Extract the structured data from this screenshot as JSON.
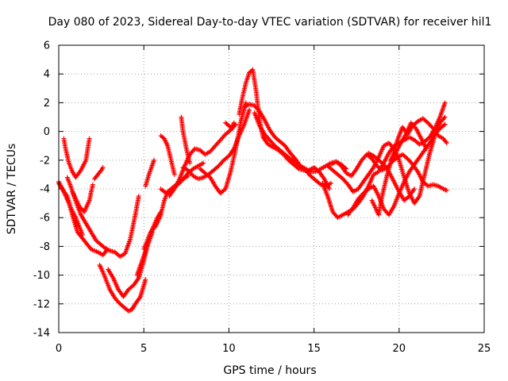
{
  "chart_data": {
    "type": "scatter",
    "title": "Day 080 of 2023, Sidereal Day-to-day VTEC variation (SDTVAR) for receiver hil1",
    "xlabel": "GPS time / hours",
    "ylabel": "SDTVAR / TECUs",
    "xlim": [
      0,
      25
    ],
    "ylim": [
      -14,
      6
    ],
    "xticks": [
      0,
      5,
      10,
      15,
      20,
      25
    ],
    "yticks": [
      -14,
      -12,
      -10,
      -8,
      -6,
      -4,
      -2,
      0,
      2,
      4,
      6
    ],
    "grid": true,
    "marker": "+",
    "color": "#ff0000",
    "series": [
      {
        "name": "s1",
        "x": [
          0.0,
          0.3,
          0.6,
          0.8,
          1.1,
          1.5,
          1.9,
          2.3,
          2.6,
          2.8
        ],
        "y": [
          -3.5,
          -4.2,
          -5.0,
          -5.8,
          -7.0,
          -7.6,
          -8.2,
          -8.4,
          -8.6,
          -8.3
        ]
      },
      {
        "name": "s2",
        "x": [
          0.0,
          0.2,
          0.5,
          0.7,
          1.0,
          1.2,
          1.4
        ],
        "y": [
          -3.6,
          -4.0,
          -4.5,
          -5.3,
          -6.0,
          -6.6,
          -7.2
        ]
      },
      {
        "name": "s3",
        "x": [
          0.3,
          0.4,
          0.6,
          0.8,
          1.0,
          1.3,
          1.6,
          1.8
        ],
        "y": [
          -0.5,
          -1.2,
          -2.2,
          -2.8,
          -3.2,
          -2.7,
          -2.0,
          -0.5
        ]
      },
      {
        "name": "s4",
        "x": [
          0.5,
          0.7,
          0.9,
          1.1,
          1.3,
          1.6,
          1.8,
          2.0,
          2.2,
          2.4,
          2.7,
          3.0,
          3.3,
          3.6,
          3.9,
          4.2,
          4.5,
          4.7
        ],
        "y": [
          -3.2,
          -3.8,
          -4.5,
          -5.2,
          -5.8,
          -6.4,
          -6.8,
          -7.2,
          -7.6,
          -7.8,
          -8.1,
          -8.3,
          -8.4,
          -8.7,
          -8.5,
          -7.5,
          -5.8,
          -4.5
        ]
      },
      {
        "name": "s5",
        "x": [
          0.8,
          1.0,
          1.2,
          1.5,
          1.8,
          2.0
        ],
        "y": [
          -4.2,
          -4.7,
          -5.2,
          -5.6,
          -4.8,
          -3.7
        ]
      },
      {
        "name": "s6",
        "x": [
          2.1,
          2.3,
          2.5,
          2.6
        ],
        "y": [
          -3.3,
          -3.0,
          -2.7,
          -2.5
        ]
      },
      {
        "name": "s7",
        "x": [
          2.4,
          2.6,
          2.8,
          3.0,
          3.3,
          3.6,
          3.9,
          4.1,
          4.3,
          4.5,
          4.8,
          5.1
        ],
        "y": [
          -9.3,
          -9.8,
          -10.4,
          -11.0,
          -11.6,
          -12.0,
          -12.3,
          -12.5,
          -12.4,
          -12.0,
          -11.5,
          -10.3
        ]
      },
      {
        "name": "s8",
        "x": [
          2.9,
          3.2,
          3.5,
          3.8,
          4.1,
          4.4,
          4.7,
          5.0,
          5.2,
          5.5
        ],
        "y": [
          -9.6,
          -10.2,
          -11.0,
          -11.5,
          -11.0,
          -10.7,
          -10.2,
          -9.0,
          -8.0,
          -7.0
        ]
      },
      {
        "name": "s9",
        "x": [
          4.6,
          4.9,
          5.2,
          5.5,
          5.8,
          6.0
        ],
        "y": [
          -10.0,
          -9.0,
          -8.0,
          -6.8,
          -6.0,
          -5.6
        ]
      },
      {
        "name": "s10",
        "x": [
          5.0,
          5.2,
          5.4,
          5.7,
          6.0,
          6.2,
          6.4,
          6.7,
          7.0,
          7.3,
          7.6
        ],
        "y": [
          -8.2,
          -7.6,
          -7.0,
          -6.6,
          -5.8,
          -4.8,
          -4.2,
          -3.9,
          -3.6,
          -3.3,
          -3.1
        ]
      },
      {
        "name": "s11",
        "x": [
          5.1,
          5.3,
          5.6
        ],
        "y": [
          -3.8,
          -3.0,
          -2.0
        ]
      },
      {
        "name": "s12",
        "x": [
          6.0,
          6.2,
          6.4,
          6.6,
          6.8,
          7.1,
          7.4,
          7.6,
          7.9,
          8.2,
          8.5
        ],
        "y": [
          -4.0,
          -4.2,
          -4.3,
          -4.1,
          -3.9,
          -3.6,
          -3.2,
          -2.9,
          -2.6,
          -2.4,
          -2.2
        ]
      },
      {
        "name": "s13",
        "x": [
          6.0,
          6.2,
          6.4,
          6.6,
          6.8
        ],
        "y": [
          -0.3,
          -0.5,
          -1.0,
          -2.0,
          -3.0
        ]
      },
      {
        "name": "s14",
        "x": [
          6.5,
          6.8,
          7.1,
          7.4,
          7.7,
          8.0,
          8.3,
          8.6,
          8.9,
          9.2,
          9.5,
          9.8,
          10.1,
          10.3
        ],
        "y": [
          -4.5,
          -4.0,
          -3.3,
          -2.4,
          -1.6,
          -1.2,
          -1.3,
          -1.6,
          -1.4,
          -1.0,
          -0.6,
          -0.2,
          0.1,
          0.6
        ]
      },
      {
        "name": "s15",
        "x": [
          7.2,
          7.3,
          7.5,
          7.7
        ],
        "y": [
          1.0,
          0.0,
          -1.2,
          -2.2
        ]
      },
      {
        "name": "s16",
        "x": [
          7.3,
          7.6,
          7.9,
          8.2,
          8.5,
          8.8,
          9.1,
          9.4,
          9.7,
          10.0,
          10.3,
          10.6,
          10.9,
          11.2
        ],
        "y": [
          -2.5,
          -2.7,
          -3.1,
          -3.3,
          -3.2,
          -3.0,
          -2.7,
          -2.4,
          -2.0,
          -1.7,
          -1.2,
          -0.3,
          0.5,
          1.5
        ]
      },
      {
        "name": "s17",
        "x": [
          8.3,
          8.6,
          8.9,
          9.2,
          9.5,
          9.8,
          10.1,
          10.4,
          10.7,
          11.0
        ],
        "y": [
          -2.6,
          -2.9,
          -3.2,
          -3.8,
          -4.3,
          -4.0,
          -2.8,
          -1.2,
          0.7,
          2.0
        ]
      },
      {
        "name": "s18",
        "x": [
          9.8,
          10.0,
          10.2,
          10.4
        ],
        "y": [
          0.6,
          0.4,
          0.2,
          0.5
        ]
      },
      {
        "name": "s19",
        "x": [
          10.6,
          10.8,
          11.0,
          11.2,
          11.4,
          11.6,
          11.8,
          12.0,
          12.3,
          12.6,
          12.9,
          13.2,
          13.5,
          13.8,
          14.1,
          14.4,
          14.7,
          15.0,
          15.3,
          15.6,
          15.9
        ],
        "y": [
          1.2,
          2.4,
          3.4,
          4.1,
          4.3,
          2.8,
          0.8,
          -0.4,
          -0.9,
          -1.1,
          -1.3,
          -1.6,
          -2.0,
          -2.3,
          -2.6,
          -2.7,
          -2.7,
          -2.5,
          -2.8,
          -3.3,
          -4.0
        ]
      },
      {
        "name": "s20",
        "x": [
          10.9,
          11.2,
          11.5,
          11.8,
          12.1,
          12.4,
          12.7,
          13.0,
          13.3,
          13.6,
          13.9,
          14.2,
          14.5,
          14.8,
          15.1,
          15.4,
          15.7,
          16.0
        ],
        "y": [
          1.7,
          1.9,
          1.8,
          1.4,
          0.8,
          0.1,
          -0.4,
          -0.7,
          -1.0,
          -1.5,
          -1.9,
          -2.4,
          -2.7,
          -3.1,
          -3.4,
          -3.7,
          -3.8,
          -3.6
        ]
      },
      {
        "name": "s21",
        "x": [
          11.5,
          11.8,
          12.1,
          12.4,
          12.7,
          13.0,
          13.3,
          13.6,
          13.9,
          14.2,
          14.5,
          14.8,
          15.1,
          15.4,
          15.7,
          16.0,
          16.3,
          16.6,
          16.9
        ],
        "y": [
          1.3,
          0.4,
          -0.2,
          -0.6,
          -1.0,
          -1.3,
          -1.6,
          -1.9,
          -2.1,
          -2.4,
          -2.6,
          -2.8,
          -2.8,
          -2.6,
          -2.4,
          -2.2,
          -2.1,
          -2.3,
          -2.6
        ]
      },
      {
        "name": "s22",
        "x": [
          15.5,
          15.8,
          16.1,
          16.4,
          16.7,
          17.0,
          17.3,
          17.6,
          17.9,
          18.2,
          18.5,
          18.8,
          19.1,
          19.4,
          19.7,
          20.0,
          20.3,
          20.6,
          20.9,
          21.2,
          21.5,
          21.8,
          22.1,
          22.4,
          22.7
        ],
        "y": [
          -3.6,
          -4.5,
          -5.6,
          -6.0,
          -5.8,
          -5.6,
          -5.4,
          -5.0,
          -4.5,
          -3.8,
          -3.0,
          -2.8,
          -2.2,
          -1.5,
          -1.0,
          -0.8,
          -0.6,
          -0.4,
          -0.6,
          -0.9,
          -0.7,
          -0.4,
          0.2,
          1.0,
          2.0
        ]
      },
      {
        "name": "s23",
        "x": [
          15.8,
          16.1,
          16.4,
          16.7,
          17.0,
          17.3,
          17.6,
          17.9,
          18.2,
          18.5,
          18.8,
          19.1,
          19.4,
          19.7,
          20.0,
          20.3,
          20.6,
          20.9,
          21.2,
          21.5,
          21.8,
          22.1,
          22.4,
          22.7
        ],
        "y": [
          -2.4,
          -2.7,
          -3.0,
          -3.3,
          -3.7,
          -4.2,
          -4.0,
          -3.5,
          -3.0,
          -2.5,
          -1.8,
          -1.0,
          -0.8,
          -1.2,
          -2.0,
          -3.2,
          -4.3,
          -5.0,
          -4.5,
          -3.0,
          -1.5,
          -0.3,
          0.6,
          1.0
        ]
      },
      {
        "name": "s24",
        "x": [
          16.0,
          16.3,
          16.6,
          16.9,
          17.2,
          17.5,
          17.8,
          18.1,
          18.4,
          18.7,
          19.0,
          19.3,
          19.6,
          19.9,
          20.2,
          20.5,
          20.8,
          21.1,
          21.4,
          21.7,
          22.0,
          22.3,
          22.6,
          22.8
        ],
        "y": [
          -2.3,
          -2.1,
          -2.4,
          -2.9,
          -3.1,
          -2.6,
          -2.0,
          -1.6,
          -1.9,
          -2.4,
          -2.7,
          -2.5,
          -2.1,
          -1.8,
          -1.6,
          -1.9,
          -2.3,
          -2.8,
          -3.5,
          -3.8,
          -3.7,
          -3.8,
          -4.0,
          -4.1
        ]
      },
      {
        "name": "s25",
        "x": [
          17.0,
          17.3,
          17.6,
          17.9,
          18.2,
          18.5,
          18.8,
          19.1,
          19.4,
          19.7,
          20.0,
          20.3,
          20.6,
          20.9,
          21.2,
          21.5,
          21.8,
          22.1,
          22.4,
          22.7
        ],
        "y": [
          -5.8,
          -5.3,
          -4.7,
          -4.3,
          -4.0,
          -3.8,
          -4.5,
          -5.4,
          -5.8,
          -5.2,
          -4.3,
          -3.5,
          -2.8,
          -2.3,
          -1.8,
          -1.3,
          -0.8,
          -0.2,
          0.2,
          0.5
        ]
      },
      {
        "name": "s26",
        "x": [
          18.2,
          18.5,
          18.8,
          19.1,
          19.4,
          19.7,
          20.0,
          20.3,
          20.6,
          20.9
        ],
        "y": [
          -1.5,
          -1.7,
          -2.0,
          -2.3,
          -2.8,
          -3.5,
          -4.2,
          -4.8,
          -4.5,
          -4.0
        ]
      },
      {
        "name": "s27",
        "x": [
          18.4,
          18.6,
          18.8,
          19.0,
          19.3,
          19.6,
          19.9,
          20.2,
          20.5,
          20.8,
          21.1,
          21.4,
          21.7,
          22.0,
          22.3,
          22.6,
          22.8
        ],
        "y": [
          -4.8,
          -5.3,
          -5.8,
          -4.5,
          -3.0,
          -1.8,
          -0.6,
          0.3,
          -0.2,
          0.4,
          0.7,
          0.9,
          0.6,
          0.2,
          -0.3,
          -0.5,
          -0.8
        ]
      },
      {
        "name": "s28",
        "x": [
          19.5,
          19.8,
          20.1,
          20.4,
          20.7,
          21.0,
          21.3,
          21.6
        ],
        "y": [
          -2.0,
          -1.5,
          -0.8,
          -0.2,
          0.6,
          0.2,
          -0.5,
          -1.2
        ]
      }
    ]
  }
}
